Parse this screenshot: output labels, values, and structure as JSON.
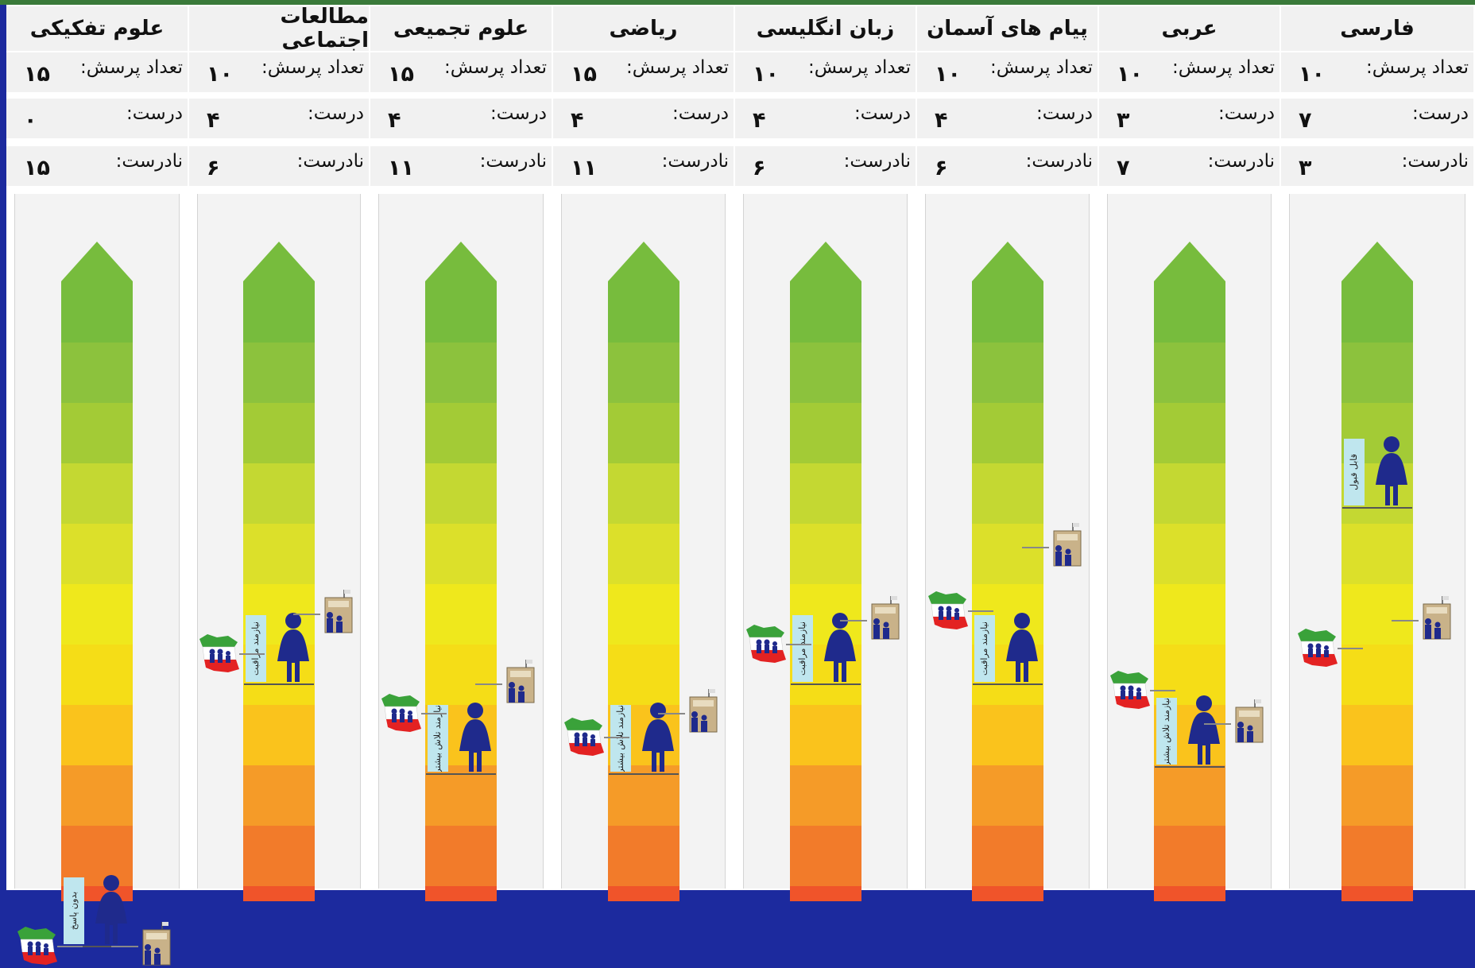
{
  "labels": {
    "count": "تعداد پرسش:",
    "correct": "درست:",
    "wrong": "نادرست:"
  },
  "columns": [
    {
      "subject": "علوم تفکیکی",
      "count": "۱۵",
      "correct": "۰",
      "wrong": "۱۵",
      "badge": "بدون پاسخ",
      "person_level": 0,
      "school_level": 0,
      "country_level": 0
    },
    {
      "subject": "مطالعات اجتماعی",
      "count": "۱۰",
      "correct": "۴",
      "wrong": "۶",
      "badge": "نیازمند مراقبت",
      "person_level": 0.395,
      "school_level": 0.5,
      "country_level": 0.44
    },
    {
      "subject": "علوم تجمیعی",
      "count": "۱۵",
      "correct": "۴",
      "wrong": "۱۱",
      "badge": "نیازمند تلاش بیشتر",
      "person_level": 0.26,
      "school_level": 0.395,
      "country_level": 0.35
    },
    {
      "subject": "ریاضی",
      "count": "۱۵",
      "correct": "۴",
      "wrong": "۱۱",
      "badge": "نیازمند تلاش بیشتر",
      "person_level": 0.26,
      "school_level": 0.35,
      "country_level": 0.315
    },
    {
      "subject": "زبان انگلیسی",
      "count": "۱۰",
      "correct": "۴",
      "wrong": "۶",
      "badge": "نیازمند مراقبت",
      "person_level": 0.395,
      "school_level": 0.49,
      "country_level": 0.455
    },
    {
      "subject": "پیام های آسمان",
      "count": "۱۰",
      "correct": "۴",
      "wrong": "۶",
      "badge": "نیازمند مراقبت",
      "person_level": 0.395,
      "school_level": 0.6,
      "country_level": 0.505
    },
    {
      "subject": "عربی",
      "count": "۱۰",
      "correct": "۳",
      "wrong": "۷",
      "badge": "نیازمند تلاش بیشتر",
      "person_level": 0.27,
      "school_level": 0.335,
      "country_level": 0.385
    },
    {
      "subject": "فارسی",
      "count": "۱۰",
      "correct": "۷",
      "wrong": "۳",
      "badge": "قابل قبول",
      "person_level": 0.66,
      "school_level": 0.49,
      "country_level": 0.448
    }
  ],
  "chart_data": {
    "type": "bar",
    "categories": [
      "علوم تفکیکی",
      "مطالعات اجتماعی",
      "علوم تجمیعی",
      "ریاضی",
      "زبان انگلیسی",
      "پیام های آسمان",
      "عربی",
      "فارسی"
    ],
    "series": [
      {
        "values": [
          15,
          10,
          15,
          15,
          10,
          10,
          10,
          10
        ]
      },
      {
        "values": [
          0,
          4,
          4,
          4,
          4,
          4,
          3,
          7
        ]
      },
      {
        "values": [
          15,
          6,
          11,
          11,
          6,
          6,
          7,
          3
        ]
      }
    ],
    "school_level": [
      0,
      0.5,
      0.395,
      0.35,
      0.49,
      0.6,
      0.335,
      0.49
    ],
    "country_level": [
      0,
      0.44,
      0.35,
      0.315,
      0.455,
      0.505,
      0.385,
      0.448
    ],
    "scale_colors": [
      "#f0542a",
      "#f27b2a",
      "#f59b28",
      "#fac31c",
      "#f5dd17",
      "#efe81c",
      "#dce02a",
      "#c4d832",
      "#a3cb36",
      "#8cc23d",
      "#77bc3d"
    ]
  },
  "colors": {
    "background": "#1c2a9e",
    "badge": "#bfe6ee",
    "figure": "#1f2a8c"
  }
}
